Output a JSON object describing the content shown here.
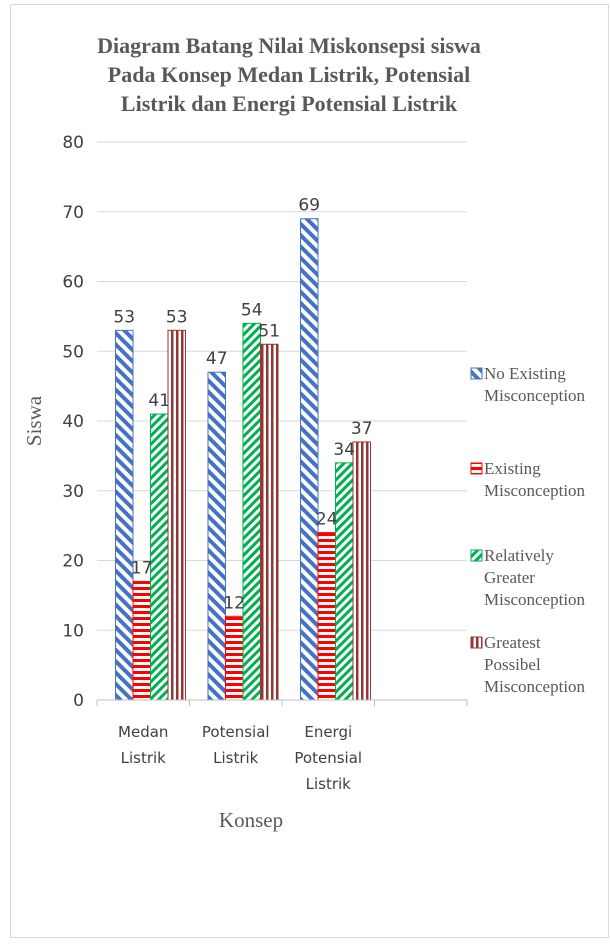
{
  "chart_data": {
    "type": "bar",
    "title": [
      "Diagram Batang Nilai Miskonsepsi siswa",
      "Pada Konsep Medan Listrik, Potensial",
      "Listrik dan Energi Potensial Listrik"
    ],
    "xlabel": "Konsep",
    "ylabel": "Siswa",
    "ylim": [
      0,
      80
    ],
    "yticks": [
      0,
      10,
      20,
      30,
      40,
      50,
      60,
      70,
      80
    ],
    "grid": true,
    "legend_position": "right",
    "categories": [
      [
        "Medan",
        "Listrik"
      ],
      [
        "Potensial",
        "Listrik"
      ],
      [
        "Energi",
        "Potensial",
        "Listrik"
      ],
      [
        ""
      ]
    ],
    "series": [
      {
        "name": [
          "No Existing",
          "Misconception"
        ],
        "values": [
          53,
          47,
          69,
          null
        ],
        "color": "#4472c4",
        "pattern": "wide-diagonal"
      },
      {
        "name": [
          "Existing",
          "Misconception"
        ],
        "values": [
          17,
          12,
          24,
          null
        ],
        "color": "#ff0000",
        "pattern": "horizontal"
      },
      {
        "name": [
          "Relatively",
          "Greater",
          "Misconception"
        ],
        "values": [
          41,
          54,
          34,
          null
        ],
        "color": "#00b050",
        "pattern": "diagonal"
      },
      {
        "name": [
          "Greatest",
          "Possibel",
          "Misconception"
        ],
        "values": [
          53,
          51,
          37,
          null
        ],
        "color": "#943634",
        "pattern": "vertical"
      }
    ]
  }
}
